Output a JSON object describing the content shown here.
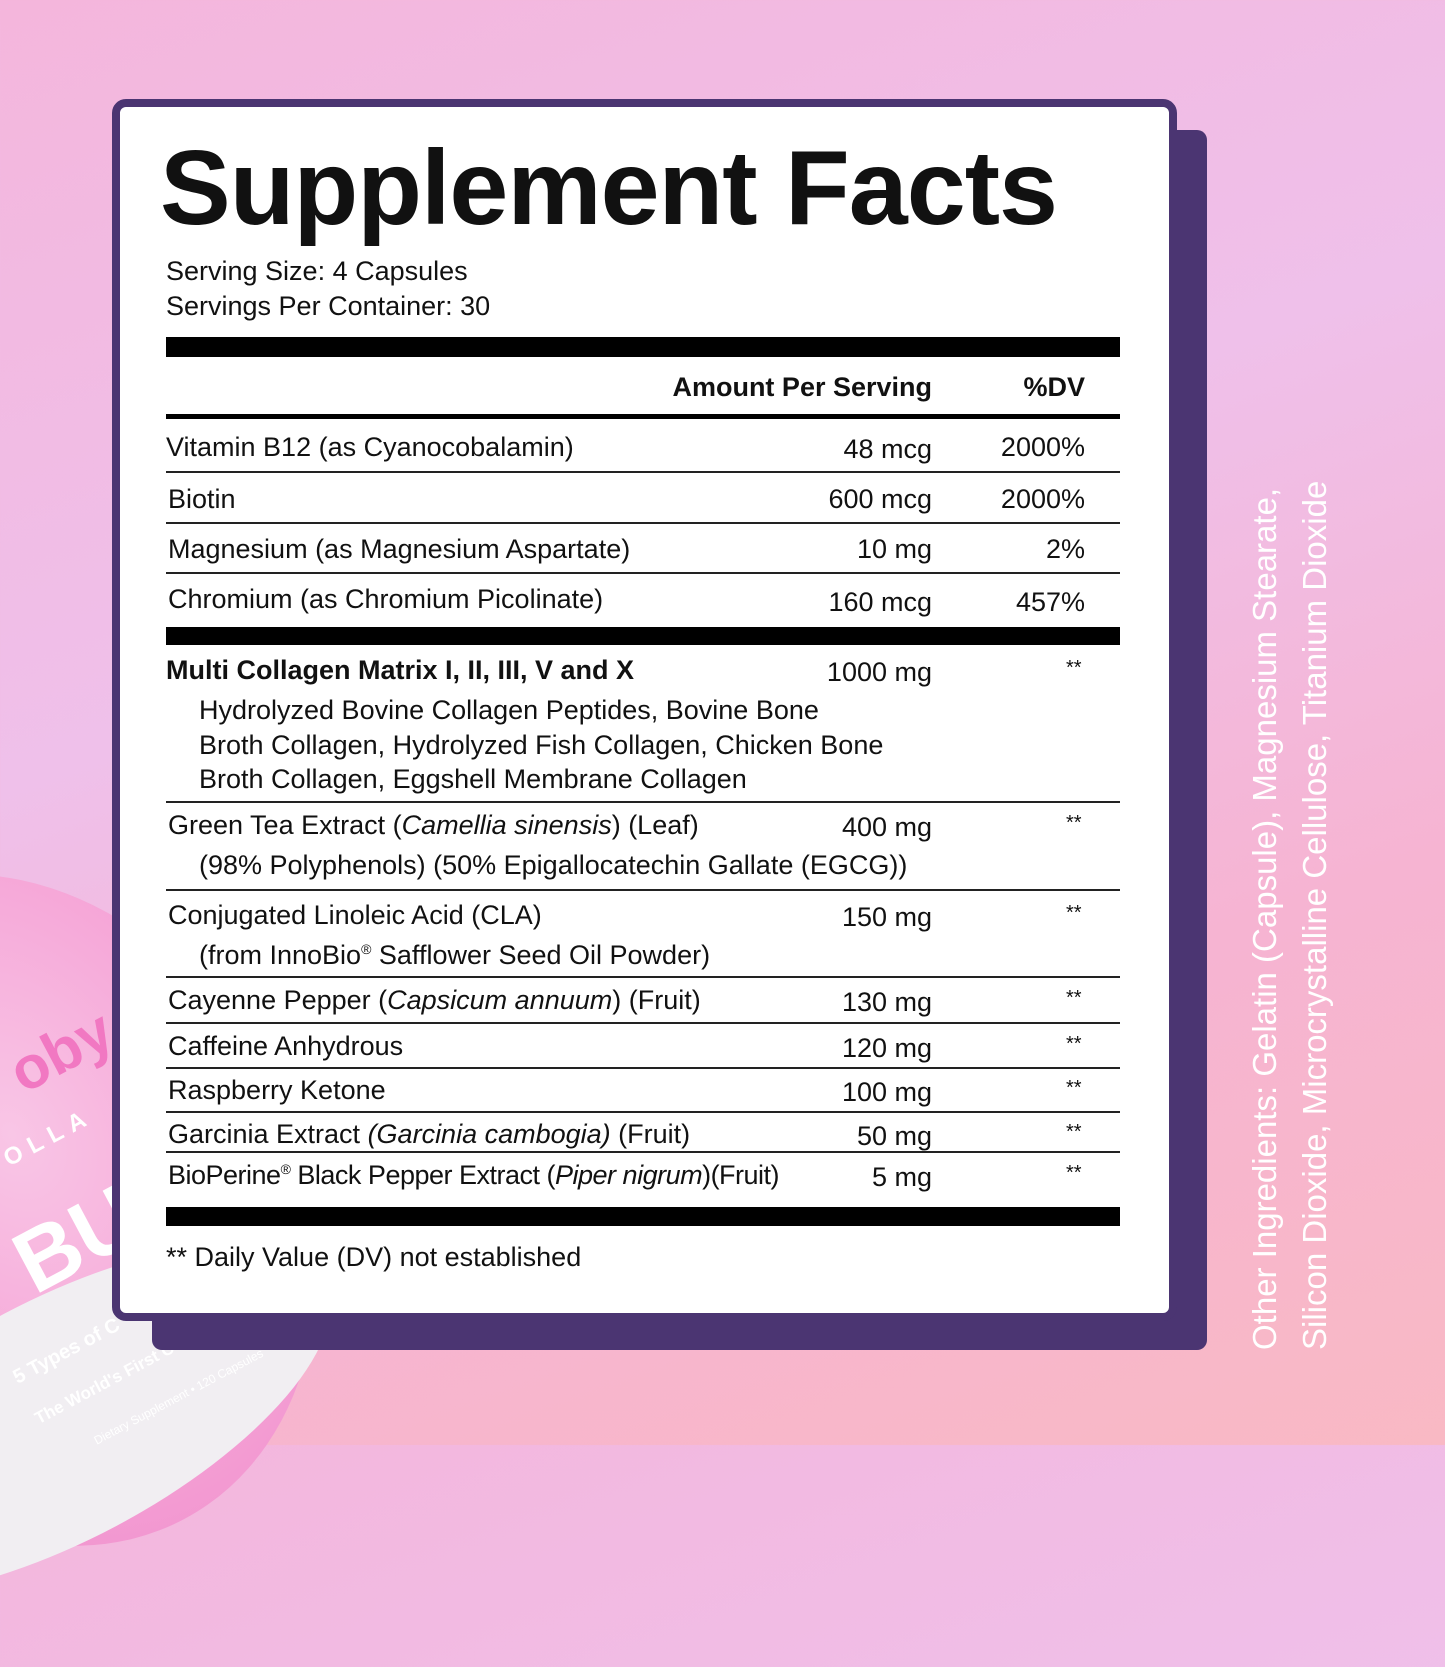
{
  "title": "Supplement Facts",
  "serving_size": "Serving Size: 4 Capsules",
  "servings_per_container": "Servings Per Container: 30",
  "header": {
    "amount": "Amount Per Serving",
    "dv": "%DV"
  },
  "vitamins": [
    {
      "name": "Vitamin B12 (as Cyanocobalamin)",
      "amount": "48 mcg",
      "dv": "2000%"
    },
    {
      "name": "Biotin",
      "amount": "600 mcg",
      "dv": "2000%"
    },
    {
      "name": "Magnesium (as Magnesium Aspartate)",
      "amount": "10 mg",
      "dv": "2%"
    },
    {
      "name": "Chromium (as Chromium Picolinate)",
      "amount": "160 mcg",
      "dv": "457%"
    }
  ],
  "collagen": {
    "name": "Multi Collagen Matrix I, II, III, V and X",
    "amount": "1000 mg",
    "dv": "**",
    "sub": [
      "Hydrolyzed Bovine Collagen Peptides, Bovine Bone",
      "Broth Collagen, Hydrolyzed Fish Collagen, Chicken Bone",
      "Broth Collagen, Eggshell Membrane Collagen"
    ]
  },
  "green_tea": {
    "pre": "Green Tea Extract (",
    "italic": "Camellia sinensis",
    "post": ") (Leaf)",
    "sub": "(98% Polyphenols) (50% Epigallocatechin Gallate (EGCG))",
    "amount": "400 mg",
    "dv": "**"
  },
  "cla": {
    "name": "Conjugated Linoleic Acid (CLA)",
    "sub_pre": "(from InnoBio",
    "reg": "®",
    "sub_post": " Safflower Seed Oil Powder)",
    "amount": "150 mg",
    "dv": "**"
  },
  "cayenne": {
    "pre": "Cayenne Pepper (",
    "italic": "Capsicum annuum",
    "post": ") (Fruit)",
    "amount": "130 mg",
    "dv": "**"
  },
  "caffeine": {
    "name": "Caffeine Anhydrous",
    "amount": "120 mg",
    "dv": "**"
  },
  "raspberry": {
    "name": "Raspberry Ketone",
    "amount": "100 mg",
    "dv": "**"
  },
  "garcinia": {
    "pre": "Garcinia Extract ",
    "italic": "(Garcinia cambogia)",
    "post": " (Fruit)",
    "amount": "50 mg",
    "dv": "**"
  },
  "bioperine": {
    "pre": "BioPerine",
    "reg": "®",
    "mid": " Black Pepper Extract (",
    "italic": "Piper nigrum",
    "post": ")(Fruit)",
    "amount": "5 mg",
    "dv": "**"
  },
  "footnote": "** Daily Value (DV) not established",
  "other_ingredients": [
    "Other Ingredients: Gelatin (Capsule), Magnesium Stearate,",
    "Silicon Dioxide, Microcrystalline Cellulose, Titanium Dioxide"
  ],
  "bottle": {
    "brand": "oby",
    "line": "OLLA",
    "big": "BU",
    "tag1": "5 Types of C",
    "tag2": "The World's First C",
    "tag3": "Dietary Supplement • 120 Capsules"
  }
}
